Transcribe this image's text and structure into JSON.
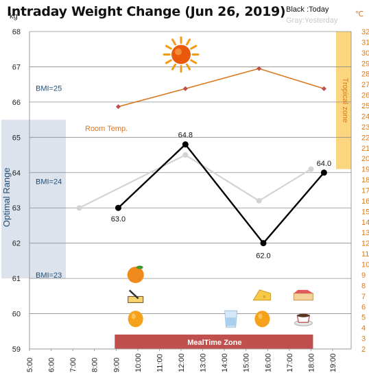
{
  "title": "Intraday Weight Change (Jun 26, 2019)",
  "legend": {
    "today": "Black :Today",
    "yesterday": "Gray:Yesterday"
  },
  "units": {
    "left": "kg",
    "right": "℃"
  },
  "bands": {
    "optimal": "Optimal Range",
    "tropical": "Tropical zone",
    "meal": "MealTime Zone"
  },
  "bmi_labels": [
    "BMI=25",
    "BMI=24",
    "BMI=23"
  ],
  "room_temp_label": "Room Temp.",
  "colors": {
    "today": "#000000",
    "yesterday": "#d3d3d3",
    "temperature": "#d9771e",
    "optimal_band": "#dde3ec",
    "tropical_band": "#fbd67e",
    "meal_band": "#c0504d",
    "grid": "#8c8c8c",
    "axis_right": "#d97a1a",
    "optimal_text": "#1f4e79"
  },
  "icons": [
    {
      "name": "sun-icon",
      "glyph": "☀",
      "time": 12.0,
      "weight": 67.35
    },
    {
      "name": "orange-icon",
      "glyph": "●",
      "time": 9.9,
      "weight": 61.1
    },
    {
      "name": "butter-icon",
      "glyph": "▱",
      "time": 9.9,
      "weight": 60.45
    },
    {
      "name": "mandarin-icon",
      "glyph": "●",
      "time": 9.9,
      "weight": 59.85
    },
    {
      "name": "water-glass-icon",
      "glyph": "▯",
      "time": 14.3,
      "weight": 59.85
    },
    {
      "name": "cheese-icon",
      "glyph": "◢",
      "time": 15.75,
      "weight": 60.5
    },
    {
      "name": "mandarin-2-icon",
      "glyph": "●",
      "time": 15.75,
      "weight": 59.85
    },
    {
      "name": "cake-icon",
      "glyph": "▬",
      "time": 17.65,
      "weight": 60.5
    },
    {
      "name": "coffee-icon",
      "glyph": "◡",
      "time": 17.65,
      "weight": 59.85
    }
  ],
  "chart_data": {
    "type": "line",
    "x_ticks": [
      "5:00",
      "6:00",
      "7:00",
      "8:00",
      "9:00",
      "10:00",
      "11:00",
      "12:00",
      "13:00",
      "14:00",
      "15:00",
      "16:00",
      "17:00",
      "18:00",
      "19:00"
    ],
    "xlim": [
      5,
      19
    ],
    "ylim": [
      59,
      68
    ],
    "y_ticks": [
      59,
      60,
      61,
      62,
      63,
      64,
      65,
      66,
      67,
      68
    ],
    "y2lim": [
      2,
      32
    ],
    "y2_ticks": [
      2,
      3,
      4,
      5,
      6,
      7,
      8,
      9,
      10,
      11,
      12,
      13,
      14,
      15,
      16,
      17,
      18,
      19,
      20,
      21,
      22,
      23,
      24,
      25,
      26,
      27,
      28,
      29,
      30,
      31,
      32
    ],
    "ylabel": "kg",
    "y2label": "℃",
    "grid": true,
    "series": [
      {
        "name": "Today",
        "axis": "left",
        "x": [
          9.1,
          12.2,
          15.8,
          18.6
        ],
        "values": [
          63.0,
          64.8,
          62.0,
          64.0
        ],
        "labels": [
          "63.0",
          "64.8",
          "62.0",
          "64.0"
        ]
      },
      {
        "name": "Yesterday",
        "axis": "left",
        "x": [
          7.3,
          12.2,
          15.6,
          18.0
        ],
        "values": [
          63.0,
          64.5,
          63.2,
          64.1
        ]
      },
      {
        "name": "Room Temp.",
        "axis": "right",
        "x": [
          9.1,
          12.2,
          15.6,
          18.6
        ],
        "values": [
          24.9,
          26.6,
          28.5,
          26.6
        ]
      }
    ],
    "bands": [
      {
        "label": "Optimal Range",
        "axis": "left",
        "y_from": 61.0,
        "y_to": 65.5
      },
      {
        "label": "Tropical zone",
        "axis": "right",
        "y_from": 19,
        "y_to": 32
      },
      {
        "label": "MealTime Zone",
        "x_from": 9.0,
        "x_to": 18.0
      }
    ],
    "annotations": [
      {
        "text": "BMI=25",
        "y": 66.4
      },
      {
        "text": "BMI=24",
        "y": 63.75
      },
      {
        "text": "BMI=23",
        "y": 61.1
      }
    ]
  }
}
